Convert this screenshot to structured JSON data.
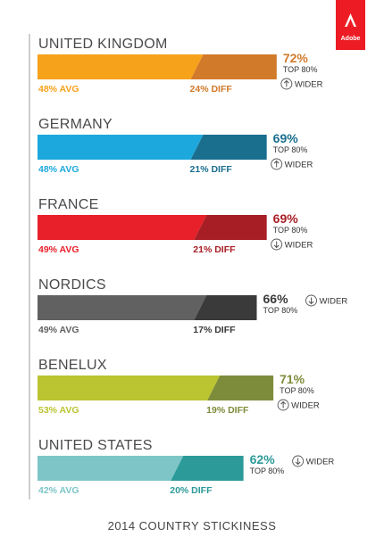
{
  "brand": {
    "name": "Adobe",
    "color": "#ED1C24"
  },
  "chart_data": {
    "type": "bar",
    "title": "2014 COUNTRY STICKINESS",
    "stacked_parts": [
      "avg",
      "diff"
    ],
    "xlim": [
      0,
      100
    ],
    "rows": [
      {
        "country": "UNITED KINGDOM",
        "avg": 48,
        "diff": 24,
        "top80": 72,
        "avg_label": "48% AVG",
        "diff_label": "24% DIFF",
        "top_label": "72%",
        "top_sub": "TOP 80%",
        "wider_label": "WIDER",
        "direction": "up",
        "avg_color": "#F7A21B",
        "diff_color": "#D17A2A"
      },
      {
        "country": "GERMANY",
        "avg": 48,
        "diff": 21,
        "top80": 69,
        "avg_label": "48% AVG",
        "diff_label": "21% DIFF",
        "top_label": "69%",
        "top_sub": "TOP 80%",
        "wider_label": "WIDER",
        "direction": "up",
        "avg_color": "#1CA8DD",
        "diff_color": "#1A6E8E"
      },
      {
        "country": "FRANCE",
        "avg": 49,
        "diff": 21,
        "top80": 69,
        "avg_label": "49% AVG",
        "diff_label": "21% DIFF",
        "top_label": "69%",
        "top_sub": "TOP 80%",
        "wider_label": "WIDER",
        "direction": "down",
        "avg_color": "#E8202A",
        "diff_color": "#A81E25"
      },
      {
        "country": "NORDICS",
        "avg": 49,
        "diff": 17,
        "top80": 66,
        "avg_label": "49% AVG",
        "diff_label": "17% DIFF",
        "top_label": "66%",
        "top_sub": "TOP 80%",
        "wider_label": "WIDER",
        "direction": "down",
        "avg_color": "#616161",
        "diff_color": "#3A3A3A"
      },
      {
        "country": "BENELUX",
        "avg": 53,
        "diff": 19,
        "top80": 71,
        "avg_label": "53% AVG",
        "diff_label": "19% DIFF",
        "top_label": "71%",
        "top_sub": "TOP 80%",
        "wider_label": "WIDER",
        "direction": "up",
        "avg_color": "#BBC431",
        "diff_color": "#7D8C3A"
      },
      {
        "country": "UNITED STATES",
        "avg": 42,
        "diff": 20,
        "top80": 62,
        "avg_label": "42% AVG",
        "diff_label": "20% DIFF",
        "top_label": "62%",
        "top_sub": "TOP 80%",
        "wider_label": "WIDER",
        "direction": "down",
        "avg_color": "#7DC5C7",
        "diff_color": "#2C9A98"
      }
    ]
  }
}
